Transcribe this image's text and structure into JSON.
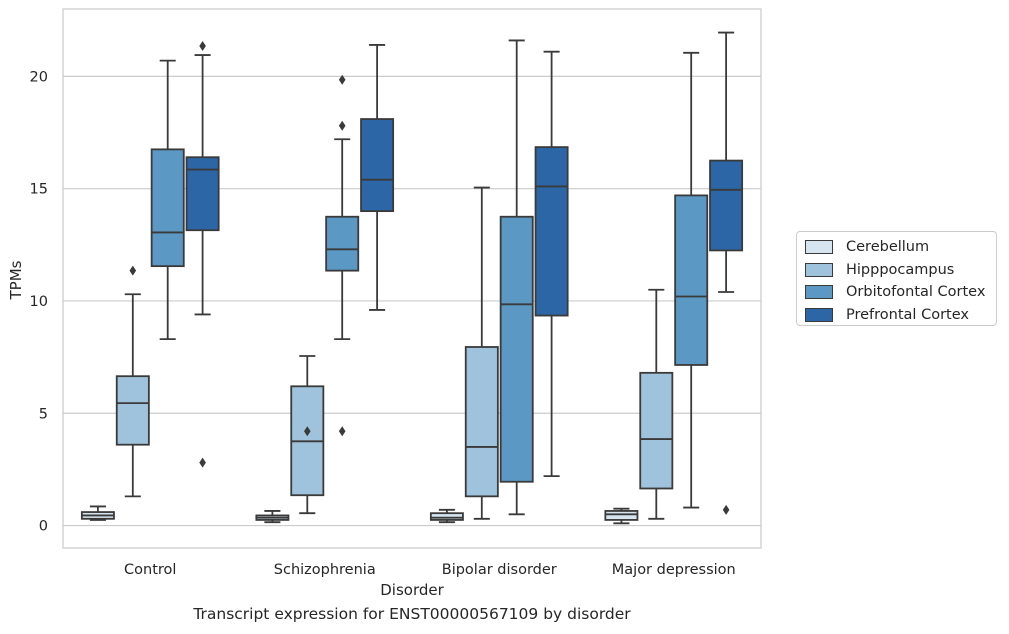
{
  "chart_data": {
    "type": "box",
    "xlabel": "Disorder",
    "ylabel": "TPMs",
    "ylim": [
      -1,
      23
    ],
    "yticks": [
      0,
      5,
      10,
      15,
      20
    ],
    "grid": true,
    "legend_placement": "right",
    "categories": [
      "Control",
      "Schizophrenia",
      "Bipolar disorder",
      "Major depression"
    ],
    "series": [
      {
        "name": "Cerebellum",
        "color": "#d6e4f0",
        "boxes": [
          {
            "whislo": 0.25,
            "q1": 0.3,
            "med": 0.45,
            "q3": 0.6,
            "whishi": 0.85,
            "fliers": []
          },
          {
            "whislo": 0.15,
            "q1": 0.25,
            "med": 0.35,
            "q3": 0.45,
            "whishi": 0.65,
            "fliers": []
          },
          {
            "whislo": 0.15,
            "q1": 0.25,
            "med": 0.35,
            "q3": 0.55,
            "whishi": 0.7,
            "fliers": []
          },
          {
            "whislo": 0.1,
            "q1": 0.25,
            "med": 0.5,
            "q3": 0.65,
            "whishi": 0.75,
            "fliers": []
          }
        ]
      },
      {
        "name": "Hipppocampus",
        "color": "#9fc3dc",
        "boxes": [
          {
            "whislo": 1.3,
            "q1": 3.6,
            "med": 5.45,
            "q3": 6.65,
            "whishi": 10.3,
            "fliers": [
              11.35
            ]
          },
          {
            "whislo": 0.55,
            "q1": 1.35,
            "med": 3.75,
            "q3": 6.2,
            "whishi": 7.55,
            "fliers": [
              4.2
            ]
          },
          {
            "whislo": 0.3,
            "q1": 1.3,
            "med": 3.5,
            "q3": 7.95,
            "whishi": 15.05,
            "fliers": []
          },
          {
            "whislo": 0.3,
            "q1": 1.65,
            "med": 3.85,
            "q3": 6.8,
            "whishi": 10.5,
            "fliers": []
          }
        ]
      },
      {
        "name": "Orbitofontal Cortex",
        "color": "#5b98c4",
        "boxes": [
          {
            "whislo": 8.3,
            "q1": 11.55,
            "med": 13.05,
            "q3": 16.75,
            "whishi": 20.7,
            "fliers": []
          },
          {
            "whislo": 8.3,
            "q1": 11.35,
            "med": 12.3,
            "q3": 13.75,
            "whishi": 17.2,
            "fliers": [
              19.85,
              17.8,
              4.2
            ]
          },
          {
            "whislo": 0.5,
            "q1": 1.95,
            "med": 9.85,
            "q3": 13.75,
            "whishi": 21.6,
            "fliers": []
          },
          {
            "whislo": 0.8,
            "q1": 7.15,
            "med": 10.2,
            "q3": 14.7,
            "whishi": 21.05,
            "fliers": []
          }
        ]
      },
      {
        "name": "Prefrontal Cortex",
        "color": "#2c66a6",
        "boxes": [
          {
            "whislo": 9.4,
            "q1": 13.15,
            "med": 15.85,
            "q3": 16.4,
            "whishi": 20.95,
            "fliers": [
              21.35,
              2.8
            ]
          },
          {
            "whislo": 9.6,
            "q1": 14.0,
            "med": 15.4,
            "q3": 18.1,
            "whishi": 21.4,
            "fliers": []
          },
          {
            "whislo": 2.2,
            "q1": 9.35,
            "med": 15.1,
            "q3": 16.85,
            "whishi": 21.1,
            "fliers": []
          },
          {
            "whislo": 10.4,
            "q1": 12.25,
            "med": 14.95,
            "q3": 16.25,
            "whishi": 21.95,
            "fliers": [
              0.7
            ]
          }
        ]
      }
    ]
  },
  "caption": "Transcript expression for ENST00000567109 by disorder"
}
